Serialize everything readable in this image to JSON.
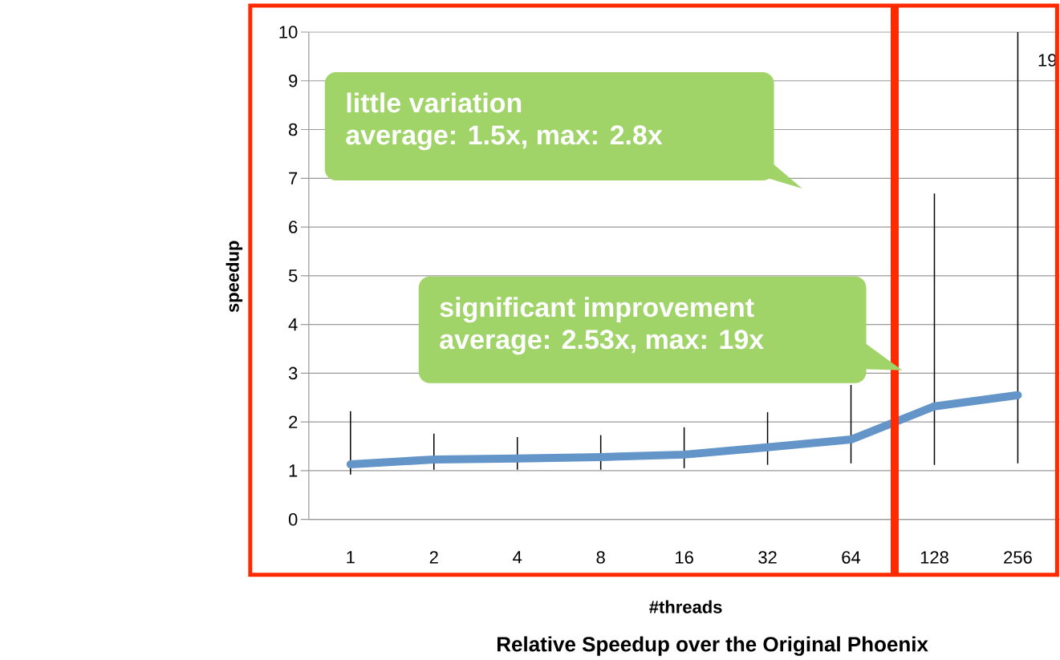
{
  "chart_data": {
    "type": "line",
    "title": "Relative Speedup over the Original Phoenix",
    "xlabel": "#threads",
    "ylabel": "speedup",
    "categories": [
      "1",
      "2",
      "4",
      "8",
      "16",
      "32",
      "64",
      "128",
      "256"
    ],
    "values": [
      1.13,
      1.23,
      1.25,
      1.28,
      1.33,
      1.48,
      1.64,
      2.32,
      2.55
    ],
    "errors": [
      [
        0.92,
        2.22
      ],
      [
        1.02,
        1.76
      ],
      [
        1.02,
        1.69
      ],
      [
        1.02,
        1.73
      ],
      [
        1.05,
        1.89
      ],
      [
        1.12,
        2.2
      ],
      [
        1.15,
        2.76
      ],
      [
        1.12,
        6.69
      ],
      [
        1.15,
        10
      ]
    ],
    "color": "#6495c9",
    "ylim": [
      0,
      10
    ],
    "yticks": [
      0,
      1,
      2,
      3,
      4,
      5,
      6,
      7,
      8,
      9,
      10
    ],
    "grid": "y",
    "marker": "none",
    "line_style": "solid",
    "annotations": [
      "little variation",
      "average: 1.5x, max: 2.8x",
      "significant improvement",
      "average: 2.53x, max: 19x",
      "19"
    ]
  }
}
